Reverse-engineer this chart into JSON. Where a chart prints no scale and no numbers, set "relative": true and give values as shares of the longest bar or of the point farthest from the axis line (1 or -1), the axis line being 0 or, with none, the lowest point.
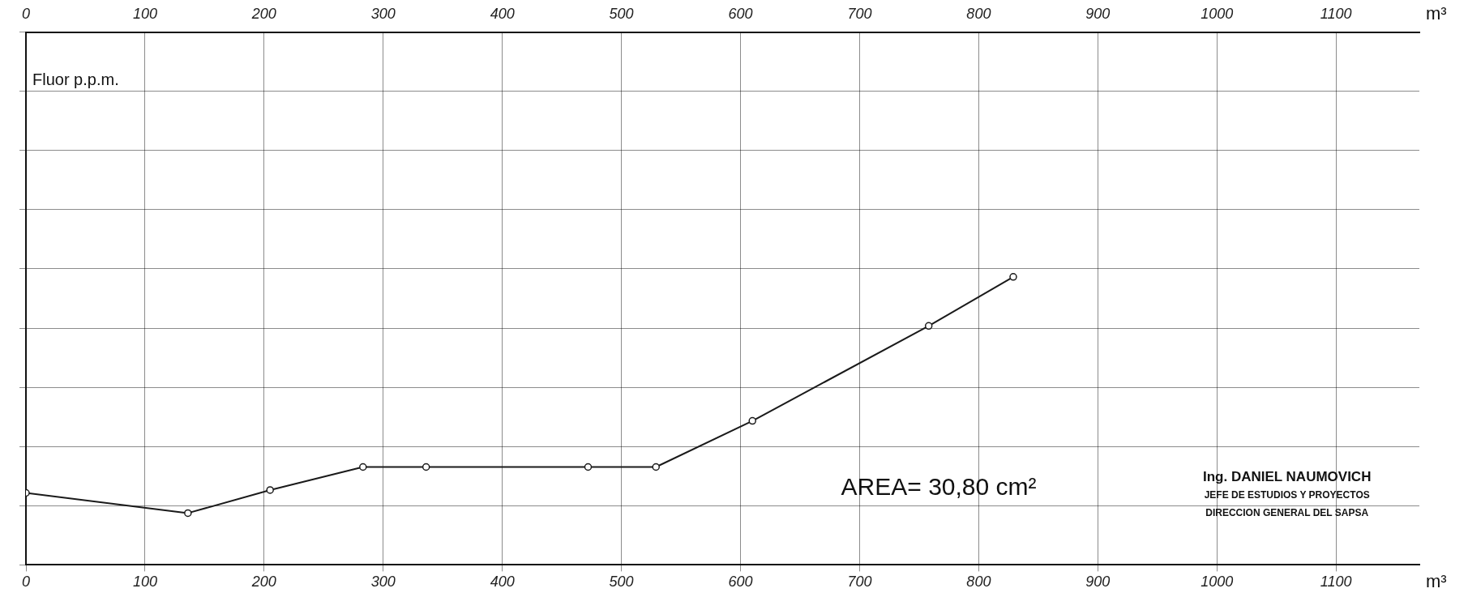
{
  "chart_data": {
    "type": "line",
    "xlabel": "m³",
    "x2label": "m³",
    "ylabel": "Fluor p.p.m.",
    "relative": true,
    "x": [
      0,
      136,
      205,
      283,
      336,
      472,
      529,
      610,
      758,
      829
    ],
    "series": [
      {
        "color": "#1a1a1a",
        "values": [
          0.25,
          0.18,
          0.26,
          0.34,
          0.34,
          0.34,
          0.34,
          0.5,
          0.83,
          1
        ]
      }
    ],
    "xlim": [
      0,
      1170
    ],
    "xticks": [
      0,
      100,
      200,
      300,
      400,
      500,
      600,
      700,
      800,
      900,
      1000,
      1100
    ],
    "x2lim": [
      0,
      1170
    ],
    "x2ticks": [
      0,
      100,
      200,
      300,
      400,
      500,
      600,
      700,
      800,
      900,
      1000,
      1100
    ],
    "grid": true,
    "marker": "circle",
    "line_style": "solid",
    "annotations": [
      "AREA= 30,80 cm²",
      "Ing. DANIEL NAUMOVICH",
      "JEFE DE ESTUDIOS Y PROYECTOS",
      "DIRECCION GENERAL DEL SAPSA"
    ]
  }
}
